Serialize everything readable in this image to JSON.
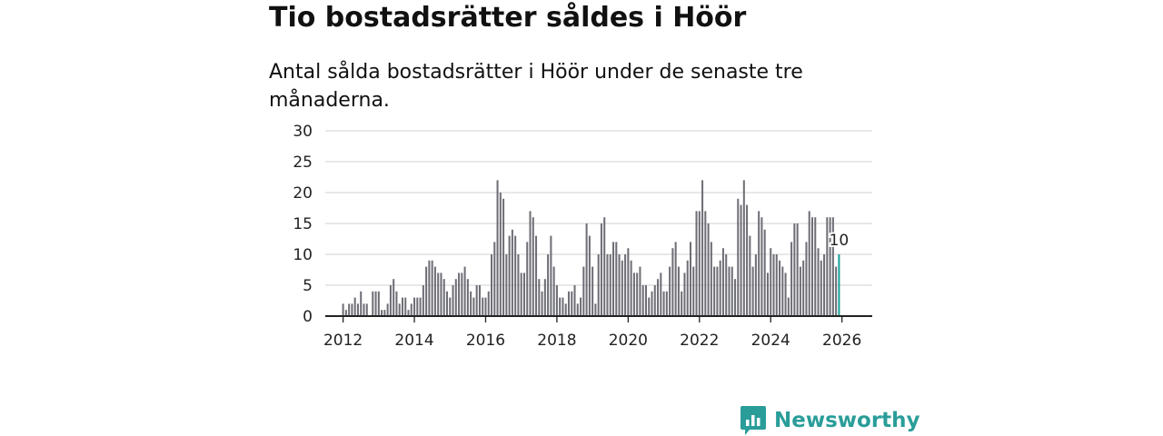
{
  "title": "Tio bostadsrätter såldes i Höör",
  "subtitle": "Antal sålda bostadsrätter i Höör under de senaste tre månaderna.",
  "brand": "Newsworthy",
  "colors": {
    "bar": "#6e6e76",
    "highlight": "#1a9e96",
    "grid": "#d9d9d9",
    "axis": "#222222",
    "brand": "#2a9d99"
  },
  "chart_data": {
    "type": "bar",
    "title": "Tio bostadsrätter såldes i Höör",
    "xlabel": "",
    "ylabel": "",
    "ylim": [
      0,
      30
    ],
    "yticks": [
      0,
      5,
      10,
      15,
      20,
      25,
      30
    ],
    "xlim": [
      2011.5,
      2026.85
    ],
    "xticks": [
      2012,
      2014,
      2016,
      2018,
      2020,
      2022,
      2024,
      2026
    ],
    "grid": true,
    "start": 2012.0,
    "step_months": 1,
    "highlight_label": "10",
    "values": [
      2,
      1,
      2,
      2,
      3,
      2,
      4,
      2,
      2,
      0,
      4,
      4,
      4,
      1,
      1,
      2,
      5,
      6,
      4,
      2,
      3,
      3,
      1,
      2,
      3,
      3,
      3,
      5,
      8,
      9,
      9,
      8,
      7,
      7,
      6,
      4,
      3,
      5,
      6,
      7,
      7,
      8,
      6,
      4,
      3,
      5,
      5,
      3,
      3,
      4,
      10,
      12,
      22,
      20,
      19,
      10,
      13,
      14,
      13,
      10,
      7,
      7,
      12,
      17,
      16,
      13,
      6,
      4,
      6,
      10,
      13,
      8,
      5,
      3,
      3,
      2,
      4,
      4,
      5,
      2,
      3,
      8,
      15,
      13,
      8,
      2,
      10,
      15,
      16,
      10,
      10,
      12,
      12,
      10,
      9,
      10,
      11,
      9,
      7,
      7,
      8,
      5,
      5,
      3,
      4,
      5,
      6,
      7,
      4,
      4,
      8,
      11,
      12,
      8,
      4,
      7,
      9,
      12,
      8,
      17,
      17,
      22,
      17,
      15,
      12,
      8,
      8,
      9,
      11,
      10,
      8,
      8,
      6,
      19,
      18,
      22,
      18,
      13,
      8,
      10,
      17,
      16,
      14,
      7,
      11,
      10,
      10,
      9,
      8,
      7,
      3,
      12,
      15,
      15,
      8,
      9,
      12,
      17,
      16,
      16,
      11,
      9,
      10,
      16,
      16,
      16,
      8,
      10
    ]
  }
}
